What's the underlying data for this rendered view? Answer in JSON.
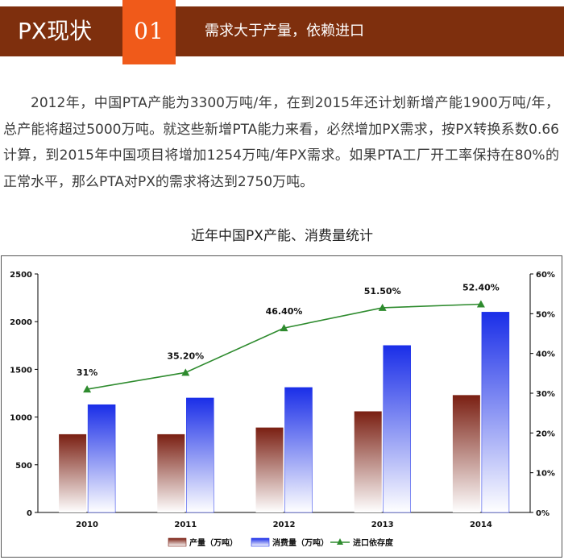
{
  "header": {
    "title": "PX现状",
    "number": "01",
    "subtitle": "需求大于产量，依赖进口"
  },
  "paragraph": "2012年，中国PTA产能为3300万吨/年，在到2015年还计划新增产能1900万吨/年，总产能将超过5000万吨。就这些新增PTA能力来看，必然增加PX需求，按PX转换系数0.66计算，到2015年中国项目将增加1254万吨/年PX需求。如果PTA工厂开工率保持在80%的正常水平，那么PTA对PX的需求将达到2750万吨。",
  "chart_title": "近年中国PX产能、消费量统计",
  "chart_data": {
    "type": "bar",
    "categories": [
      "2010",
      "2011",
      "2012",
      "2013",
      "2014"
    ],
    "series": [
      {
        "name": "产量（万吨）",
        "type": "bar",
        "axis": "left",
        "values": [
          820,
          820,
          890,
          1060,
          1230
        ]
      },
      {
        "name": "消费量（万吨）",
        "type": "bar",
        "axis": "left",
        "values": [
          1130,
          1200,
          1310,
          1750,
          2100
        ]
      },
      {
        "name": "进口依存度",
        "type": "line",
        "axis": "right",
        "values": [
          31,
          35.2,
          46.4,
          51.5,
          52.4
        ]
      }
    ],
    "data_labels": [
      "31%",
      "35.20%",
      "46.40%",
      "51.50%",
      "52.40%"
    ],
    "ylim": [
      0,
      2500
    ],
    "y_ticks": [
      "0",
      "500",
      "1000",
      "1500",
      "2000",
      "2500"
    ],
    "y2lim": [
      0,
      60
    ],
    "y2_ticks": [
      "0%",
      "10%",
      "20%",
      "30%",
      "40%",
      "50%",
      "60%"
    ],
    "grid": false,
    "legend_position": "bottom",
    "colors": {
      "production": "#7a1f12",
      "consumption": "#1a2ee8",
      "import_line": "#2e8b2e"
    }
  }
}
